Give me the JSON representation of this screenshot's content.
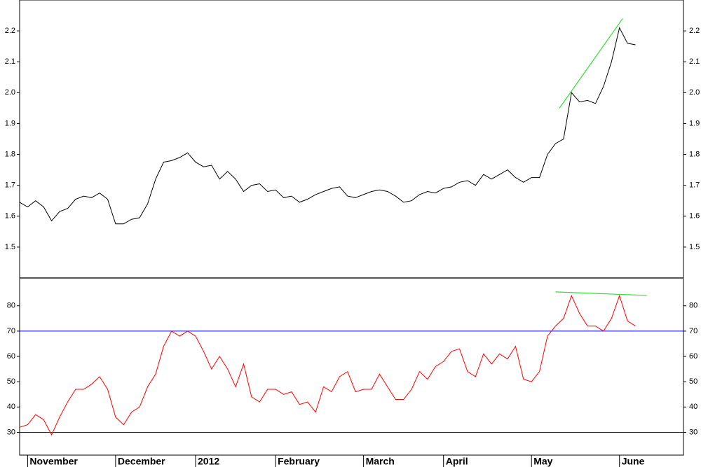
{
  "chart_data": [
    {
      "type": "line",
      "color": "#000000",
      "values": [
        1.645,
        1.63,
        1.65,
        1.63,
        1.585,
        1.615,
        1.625,
        1.655,
        1.665,
        1.66,
        1.675,
        1.655,
        1.575,
        1.575,
        1.59,
        1.595,
        1.64,
        1.72,
        1.775,
        1.78,
        1.79,
        1.805,
        1.775,
        1.76,
        1.765,
        1.72,
        1.745,
        1.72,
        1.68,
        1.7,
        1.705,
        1.68,
        1.685,
        1.66,
        1.665,
        1.645,
        1.655,
        1.67,
        1.68,
        1.69,
        1.695,
        1.665,
        1.66,
        1.67,
        1.68,
        1.685,
        1.68,
        1.665,
        1.645,
        1.65,
        1.67,
        1.68,
        1.675,
        1.69,
        1.695,
        1.71,
        1.715,
        1.7,
        1.735,
        1.72,
        1.735,
        1.75,
        1.725,
        1.71,
        1.725,
        1.725,
        1.8,
        1.835,
        1.85,
        2.0,
        1.97,
        1.975,
        1.965,
        2.02,
        2.1,
        2.21,
        2.16,
        2.155,
        null,
        null,
        null,
        null,
        null,
        null
      ],
      "ylim": [
        1.4,
        2.3
      ],
      "yticks": [
        1.5,
        1.6,
        1.7,
        1.8,
        1.9,
        {
          "value": 2,
          "label": "2.0"
        },
        2.1,
        2.2
      ],
      "trendlines": [
        {
          "x": [
            67.5,
            75.4
          ],
          "y": [
            1.95,
            2.24
          ],
          "color": "#33dd33"
        }
      ]
    },
    {
      "type": "line",
      "color": "#ff0000",
      "categories": [
        null,
        "November",
        null,
        null,
        null,
        null,
        null,
        null,
        null,
        null,
        null,
        null,
        "December",
        null,
        null,
        null,
        null,
        null,
        null,
        null,
        null,
        null,
        "2012",
        null,
        null,
        null,
        null,
        null,
        null,
        null,
        null,
        null,
        "February",
        null,
        null,
        null,
        null,
        null,
        null,
        null,
        null,
        null,
        null,
        "March",
        null,
        null,
        null,
        null,
        null,
        null,
        null,
        null,
        null,
        "April",
        null,
        null,
        null,
        null,
        null,
        null,
        null,
        null,
        null,
        null,
        "May",
        null,
        null,
        null,
        null,
        null,
        null,
        null,
        null,
        null,
        null,
        "June",
        null,
        null,
        null,
        null,
        null,
        null,
        null,
        null
      ],
      "values": [
        32,
        33,
        37,
        35,
        29,
        36,
        42,
        47,
        47,
        49,
        52,
        47,
        36,
        33,
        38,
        40,
        48,
        53,
        64,
        70,
        68,
        70,
        68,
        62,
        55,
        60,
        55,
        48,
        57,
        44,
        42,
        47,
        47,
        45,
        46,
        41,
        42,
        38,
        48,
        46,
        52,
        54,
        46,
        47,
        47,
        53,
        48,
        43,
        43,
        47,
        54,
        51,
        56,
        58,
        62,
        63,
        54,
        52,
        61,
        57,
        61,
        59,
        64,
        51,
        50,
        54,
        68,
        72,
        75,
        84,
        77,
        72,
        72,
        70,
        75,
        84,
        74,
        72,
        null,
        null,
        null,
        null,
        null,
        null
      ],
      "ylim": [
        21,
        91
      ],
      "yticks": [
        30,
        40,
        50,
        60,
        70,
        80
      ],
      "hlines": [
        70,
        30
      ],
      "hline_color": "#0000ff",
      "trendlines": [
        {
          "x": [
            67,
            78.4
          ],
          "y": [
            85.5,
            84.1
          ],
          "color": "#33dd33"
        }
      ]
    }
  ]
}
